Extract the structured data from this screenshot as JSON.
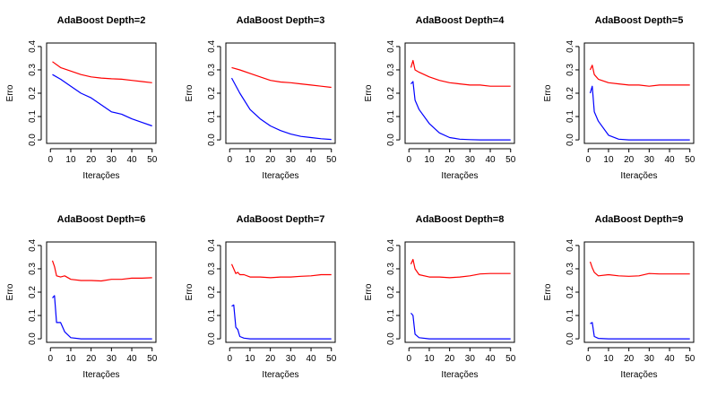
{
  "colors": {
    "test_error": "#ff0000",
    "train_error": "#0000ff"
  },
  "chart_data": [
    {
      "type": "line",
      "title": "AdaBoost Depth=2",
      "xlabel": "Iterações",
      "ylabel": "Erro",
      "xlim": [
        0,
        50
      ],
      "ylim": [
        0,
        0.4
      ],
      "xticks": [
        "0",
        "10",
        "20",
        "30",
        "40",
        "50"
      ],
      "yticks": [
        "0.0",
        "0.1",
        "0.2",
        "0.3",
        "0.4"
      ],
      "x": [
        1,
        5,
        10,
        15,
        20,
        25,
        30,
        35,
        40,
        45,
        50
      ],
      "series": [
        {
          "color": "#ff0000",
          "values": [
            0.335,
            0.31,
            0.295,
            0.28,
            0.27,
            0.265,
            0.262,
            0.26,
            0.255,
            0.25,
            0.245
          ]
        },
        {
          "color": "#0000ff",
          "values": [
            0.28,
            0.26,
            0.23,
            0.2,
            0.18,
            0.15,
            0.12,
            0.11,
            0.09,
            0.075,
            0.06
          ]
        }
      ]
    },
    {
      "type": "line",
      "title": "AdaBoost Depth=3",
      "xlabel": "Iterações",
      "ylabel": "Erro",
      "xlim": [
        0,
        50
      ],
      "ylim": [
        0,
        0.4
      ],
      "xticks": [
        "0",
        "10",
        "20",
        "30",
        "40",
        "50"
      ],
      "yticks": [
        "0.0",
        "0.1",
        "0.2",
        "0.3",
        "0.4"
      ],
      "x": [
        1,
        5,
        10,
        15,
        20,
        25,
        30,
        35,
        40,
        45,
        50
      ],
      "series": [
        {
          "color": "#ff0000",
          "values": [
            0.31,
            0.3,
            0.285,
            0.27,
            0.255,
            0.248,
            0.245,
            0.24,
            0.235,
            0.23,
            0.225
          ]
        },
        {
          "color": "#0000ff",
          "values": [
            0.265,
            0.2,
            0.13,
            0.09,
            0.06,
            0.04,
            0.025,
            0.015,
            0.01,
            0.005,
            0.002
          ]
        }
      ]
    },
    {
      "type": "line",
      "title": "AdaBoost Depth=4",
      "xlabel": "Iterações",
      "ylabel": "Erro",
      "xlim": [
        0,
        50
      ],
      "ylim": [
        0,
        0.4
      ],
      "xticks": [
        "0",
        "10",
        "20",
        "30",
        "40",
        "50"
      ],
      "yticks": [
        "0.0",
        "0.1",
        "0.2",
        "0.3",
        "0.4"
      ],
      "x": [
        1,
        2,
        3,
        5,
        10,
        15,
        20,
        25,
        30,
        35,
        40,
        45,
        50
      ],
      "series": [
        {
          "color": "#ff0000",
          "values": [
            0.31,
            0.34,
            0.3,
            0.29,
            0.27,
            0.255,
            0.245,
            0.24,
            0.235,
            0.235,
            0.23,
            0.23,
            0.23
          ]
        },
        {
          "color": "#0000ff",
          "values": [
            0.24,
            0.25,
            0.17,
            0.13,
            0.07,
            0.03,
            0.01,
            0.003,
            0.001,
            0.0,
            0.0,
            0.0,
            0.0
          ]
        }
      ]
    },
    {
      "type": "line",
      "title": "AdaBoost Depth=5",
      "xlabel": "Iterações",
      "ylabel": "Erro",
      "xlim": [
        0,
        50
      ],
      "ylim": [
        0,
        0.4
      ],
      "xticks": [
        "0",
        "10",
        "20",
        "30",
        "40",
        "50"
      ],
      "yticks": [
        "0.0",
        "0.1",
        "0.2",
        "0.3",
        "0.4"
      ],
      "x": [
        1,
        2,
        3,
        5,
        10,
        15,
        20,
        25,
        30,
        35,
        40,
        45,
        50
      ],
      "series": [
        {
          "color": "#ff0000",
          "values": [
            0.3,
            0.32,
            0.28,
            0.26,
            0.245,
            0.24,
            0.235,
            0.235,
            0.23,
            0.235,
            0.235,
            0.235,
            0.235
          ]
        },
        {
          "color": "#0000ff",
          "values": [
            0.2,
            0.23,
            0.12,
            0.08,
            0.02,
            0.003,
            0.0,
            0.0,
            0.0,
            0.0,
            0.0,
            0.0,
            0.0
          ]
        }
      ]
    },
    {
      "type": "line",
      "title": "AdaBoost Depth=6",
      "xlabel": "Iterações",
      "ylabel": "Erro",
      "xlim": [
        0,
        50
      ],
      "ylim": [
        0,
        0.4
      ],
      "xticks": [
        "0",
        "10",
        "20",
        "30",
        "40",
        "50"
      ],
      "yticks": [
        "0.0",
        "0.1",
        "0.2",
        "0.3",
        "0.4"
      ],
      "x": [
        1,
        2,
        3,
        5,
        7,
        10,
        15,
        20,
        25,
        30,
        35,
        40,
        45,
        50
      ],
      "series": [
        {
          "color": "#ff0000",
          "values": [
            0.335,
            0.31,
            0.27,
            0.265,
            0.27,
            0.255,
            0.25,
            0.25,
            0.248,
            0.255,
            0.255,
            0.26,
            0.26,
            0.262
          ]
        },
        {
          "color": "#0000ff",
          "values": [
            0.175,
            0.185,
            0.07,
            0.07,
            0.03,
            0.005,
            0.0,
            0.0,
            0.0,
            0.0,
            0.0,
            0.0,
            0.0,
            0.0
          ]
        }
      ]
    },
    {
      "type": "line",
      "title": "AdaBoost Depth=7",
      "xlabel": "Iterações",
      "ylabel": "Erro",
      "xlim": [
        0,
        50
      ],
      "ylim": [
        0,
        0.4
      ],
      "xticks": [
        "0",
        "10",
        "20",
        "30",
        "40",
        "50"
      ],
      "yticks": [
        "0.0",
        "0.1",
        "0.2",
        "0.3",
        "0.4"
      ],
      "x": [
        1,
        2,
        3,
        4,
        5,
        7,
        10,
        15,
        20,
        25,
        30,
        35,
        40,
        45,
        50
      ],
      "series": [
        {
          "color": "#ff0000",
          "values": [
            0.32,
            0.3,
            0.28,
            0.285,
            0.275,
            0.275,
            0.265,
            0.265,
            0.262,
            0.265,
            0.265,
            0.268,
            0.27,
            0.275,
            0.275
          ]
        },
        {
          "color": "#0000ff",
          "values": [
            0.14,
            0.145,
            0.05,
            0.04,
            0.01,
            0.003,
            0.0,
            0.0,
            0.0,
            0.0,
            0.0,
            0.0,
            0.0,
            0.0,
            0.0
          ]
        }
      ]
    },
    {
      "type": "line",
      "title": "AdaBoost Depth=8",
      "xlabel": "Iterações",
      "ylabel": "Erro",
      "xlim": [
        0,
        50
      ],
      "ylim": [
        0,
        0.4
      ],
      "xticks": [
        "0",
        "10",
        "20",
        "30",
        "40",
        "50"
      ],
      "yticks": [
        "0.0",
        "0.1",
        "0.2",
        "0.3",
        "0.4"
      ],
      "x": [
        1,
        2,
        3,
        5,
        10,
        15,
        20,
        25,
        30,
        35,
        40,
        45,
        50
      ],
      "series": [
        {
          "color": "#ff0000",
          "values": [
            0.32,
            0.34,
            0.3,
            0.275,
            0.265,
            0.265,
            0.262,
            0.265,
            0.27,
            0.278,
            0.28,
            0.28,
            0.28
          ]
        },
        {
          "color": "#0000ff",
          "values": [
            0.11,
            0.1,
            0.02,
            0.005,
            0.0,
            0.0,
            0.0,
            0.0,
            0.0,
            0.0,
            0.0,
            0.0,
            0.0
          ]
        }
      ]
    },
    {
      "type": "line",
      "title": "AdaBoost Depth=9",
      "xlabel": "Iterações",
      "ylabel": "Erro",
      "xlim": [
        0,
        50
      ],
      "ylim": [
        0,
        0.4
      ],
      "xticks": [
        "0",
        "10",
        "20",
        "30",
        "40",
        "50"
      ],
      "yticks": [
        "0.0",
        "0.1",
        "0.2",
        "0.3",
        "0.4"
      ],
      "x": [
        1,
        2,
        3,
        5,
        10,
        15,
        20,
        25,
        30,
        35,
        40,
        45,
        50
      ],
      "series": [
        {
          "color": "#ff0000",
          "values": [
            0.33,
            0.305,
            0.285,
            0.27,
            0.275,
            0.27,
            0.268,
            0.27,
            0.28,
            0.278,
            0.278,
            0.278,
            0.278
          ]
        },
        {
          "color": "#0000ff",
          "values": [
            0.065,
            0.07,
            0.01,
            0.002,
            0.0,
            0.0,
            0.0,
            0.0,
            0.0,
            0.0,
            0.0,
            0.0,
            0.0
          ]
        }
      ]
    }
  ]
}
